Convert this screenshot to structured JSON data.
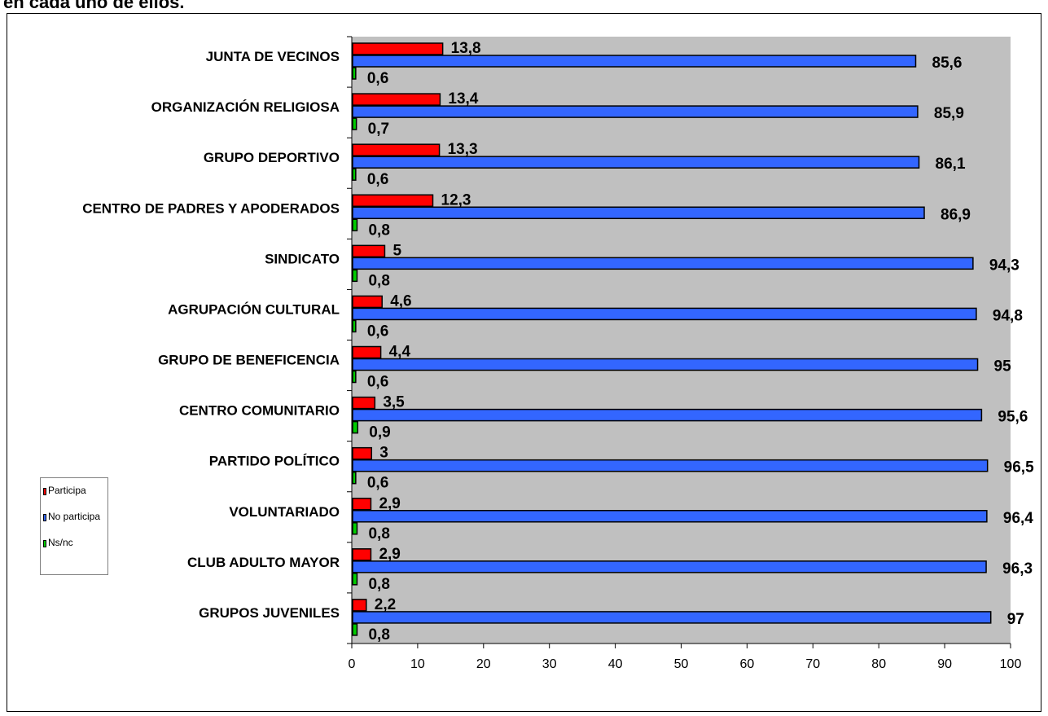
{
  "caption": "en cada uno de ellos.",
  "chart_data": {
    "type": "bar",
    "orientation": "horizontal",
    "categories": [
      "JUNTA DE VECINOS",
      "ORGANIZACIÓN RELIGIOSA",
      "GRUPO DEPORTIVO",
      "CENTRO DE PADRES Y APODERADOS",
      "SINDICATO",
      "AGRUPACIÓN CULTURAL",
      "GRUPO DE BENEFICENCIA",
      "CENTRO COMUNITARIO",
      "PARTIDO POLÍTICO",
      "VOLUNTARIADO",
      "CLUB ADULTO MAYOR",
      "GRUPOS JUVENILES"
    ],
    "series": [
      {
        "name": "Participa",
        "color": "#ff0000",
        "values": [
          13.8,
          13.4,
          13.3,
          12.3,
          5,
          4.6,
          4.4,
          3.5,
          3,
          2.9,
          2.9,
          2.2
        ],
        "labels": [
          "13,8",
          "13,4",
          "13,3",
          "12,3",
          "5",
          "4,6",
          "4,4",
          "3,5",
          "3",
          "2,9",
          "2,9",
          "2,2"
        ]
      },
      {
        "name": "No participa",
        "color": "#3366ff",
        "values": [
          85.6,
          85.9,
          86.1,
          86.9,
          94.3,
          94.8,
          95,
          95.6,
          96.5,
          96.4,
          96.3,
          97
        ],
        "labels": [
          "85,6",
          "85,9",
          "86,1",
          "86,9",
          "94,3",
          "94,8",
          "95",
          "95,6",
          "96,5",
          "96,4",
          "96,3",
          "97"
        ]
      },
      {
        "name": "Ns/nc",
        "color": "#00cc00",
        "values": [
          0.6,
          0.7,
          0.6,
          0.8,
          0.8,
          0.6,
          0.6,
          0.9,
          0.6,
          0.8,
          0.8,
          0.8
        ],
        "labels": [
          "0,6",
          "0,7",
          "0,6",
          "0,8",
          "0,8",
          "0,6",
          "0,6",
          "0,9",
          "0,6",
          "0,8",
          "0,8",
          "0,8"
        ]
      }
    ],
    "xlim": [
      0,
      100
    ],
    "xticks": [
      0,
      10,
      20,
      30,
      40,
      50,
      60,
      70,
      80,
      90,
      100
    ],
    "plot_background": "#c0c0c0",
    "grid": false,
    "legend_position": "left",
    "title": "",
    "xlabel": "",
    "ylabel": ""
  }
}
